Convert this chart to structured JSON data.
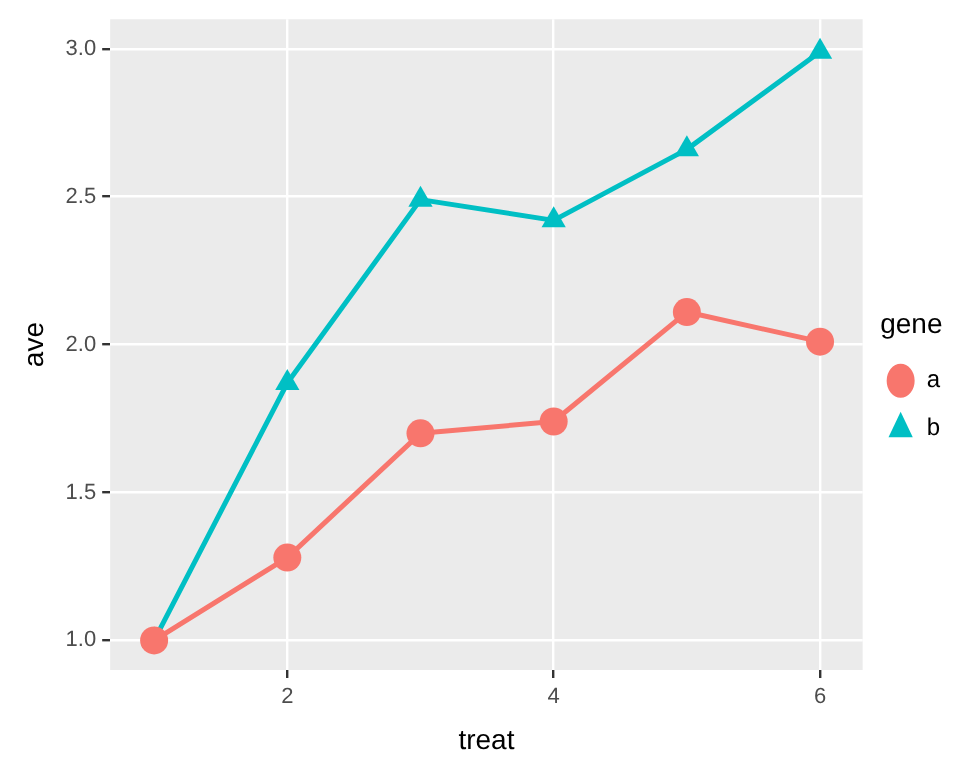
{
  "chart_data": {
    "type": "line",
    "xlabel": "treat",
    "ylabel": "ave",
    "legend_title": "gene",
    "legend": "right",
    "grid": true,
    "x": [
      1,
      2,
      3,
      4,
      5,
      6
    ],
    "xlim": [
      0.67,
      6.32
    ],
    "xticks": [
      2,
      4,
      6
    ],
    "ylim": [
      0.9,
      3.1
    ],
    "yticks": [
      {
        "value": 1,
        "label": "1.0"
      },
      {
        "value": 1.5,
        "label": "1.5"
      },
      {
        "value": 2,
        "label": "2.0"
      },
      {
        "value": 2.5,
        "label": "2.5"
      },
      {
        "value": 3,
        "label": "3.0"
      }
    ],
    "series": [
      {
        "name": "a",
        "color": "#f8766d",
        "marker": "circle",
        "values": [
          1.0,
          1.28,
          1.7,
          1.74,
          2.11,
          2.01
        ]
      },
      {
        "name": "b",
        "color": "#00bfc4",
        "marker": "triangle",
        "values": [
          1.0,
          1.87,
          2.49,
          2.42,
          2.66,
          2.99
        ]
      }
    ]
  }
}
